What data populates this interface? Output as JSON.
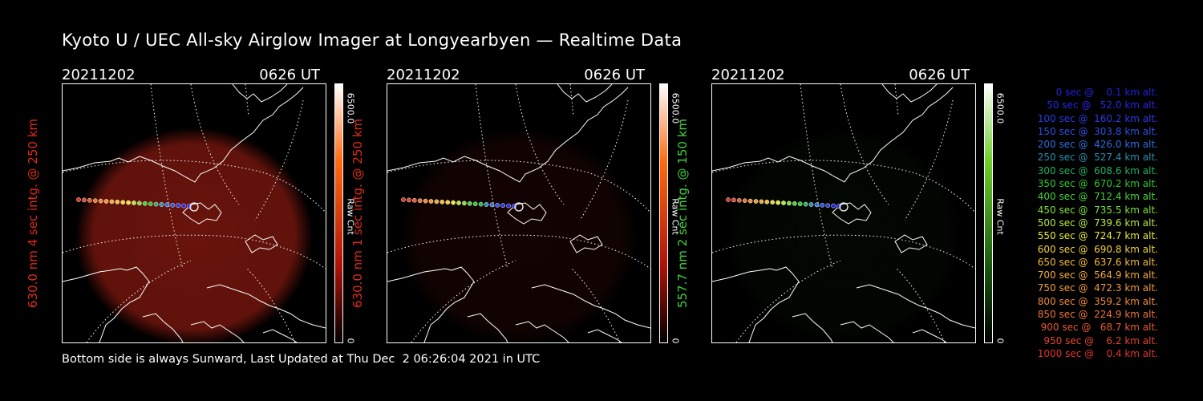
{
  "title": "Kyoto U / UEC All-sky Airglow Imager at Longyearbyen — Realtime Data",
  "footer": "Bottom side is always Sunward, Last Updated at Thu Dec  2 06:26:04 2021 in UTC",
  "colors": {
    "red": "#e02a1a",
    "green": "#3cd33c"
  },
  "panels": [
    {
      "date": "20211202",
      "time": "0626 UT",
      "ylabel": "630.0 nm 4 sec intg. @ 250 km",
      "colorbar_max": "6500.0",
      "colorbar_min": "0",
      "colorbar_label": "Raw Cnt",
      "colormap": "red",
      "intensity": 0.85
    },
    {
      "date": "20211202",
      "time": "0626 UT",
      "ylabel": "630.0 nm 1 sec intg. @ 250 km",
      "colorbar_max": "6500.0",
      "colorbar_min": "0",
      "colorbar_label": "Raw Cnt",
      "colormap": "red",
      "intensity": 0.15
    },
    {
      "date": "20211202",
      "time": "0626 UT",
      "ylabel": "557.7 nm 2 sec intg. @ 150 km",
      "colorbar_max": "6500.0",
      "colorbar_min": "0",
      "colorbar_label": "Raw Cnt",
      "colormap": "green",
      "intensity": 0.06
    }
  ],
  "legend": [
    {
      "text": "   0 sec @    0.1 km alt.",
      "color": "#2020e0"
    },
    {
      "text": "  50 sec @   52.0 km alt.",
      "color": "#2525e8"
    },
    {
      "text": " 100 sec @  160.2 km alt.",
      "color": "#2a3ae8"
    },
    {
      "text": " 150 sec @  303.8 km alt.",
      "color": "#2d50e6"
    },
    {
      "text": " 200 sec @  426.0 km alt.",
      "color": "#2f6ce0"
    },
    {
      "text": " 250 sec @  527.4 km alt.",
      "color": "#2a8fb0"
    },
    {
      "text": " 300 sec @  608.6 km alt.",
      "color": "#24b060"
    },
    {
      "text": " 350 sec @  670.2 km alt.",
      "color": "#2ec82e"
    },
    {
      "text": " 400 sec @  712.4 km alt.",
      "color": "#45d63a"
    },
    {
      "text": " 450 sec @  735.5 km alt.",
      "color": "#7ee03a"
    },
    {
      "text": " 500 sec @  739.6 km alt.",
      "color": "#b5e840"
    },
    {
      "text": " 550 sec @  724.7 km alt.",
      "color": "#e6e83a"
    },
    {
      "text": " 600 sec @  690.8 km alt.",
      "color": "#f2d23a"
    },
    {
      "text": " 650 sec @  637.6 km alt.",
      "color": "#f5bd3a"
    },
    {
      "text": " 700 sec @  564.9 km alt.",
      "color": "#f5a83a"
    },
    {
      "text": " 750 sec @  472.3 km alt.",
      "color": "#f39a38"
    },
    {
      "text": " 800 sec @  359.2 km alt.",
      "color": "#f08a36"
    },
    {
      "text": " 850 sec @  224.9 km alt.",
      "color": "#ec7534"
    },
    {
      "text": " 900 sec @   68.7 km alt.",
      "color": "#e85a30"
    },
    {
      "text": " 950 sec @    6.2 km alt.",
      "color": "#e4452c"
    },
    {
      "text": "1000 sec @    0.4 km alt.",
      "color": "#e0322a"
    }
  ]
}
